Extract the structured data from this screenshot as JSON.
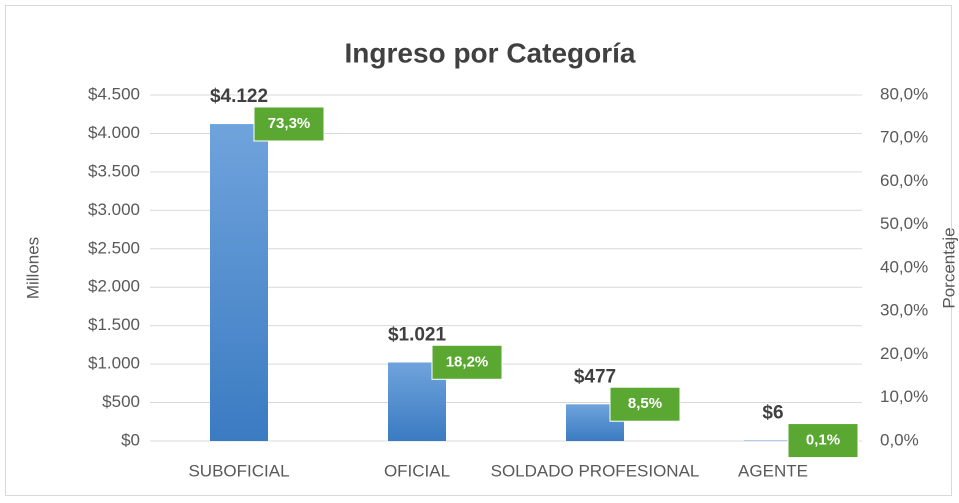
{
  "chart_data": {
    "type": "bar",
    "title": "Ingreso por Categoría",
    "categories": [
      "SUBOFICIAL",
      "OFICIAL",
      "SOLDADO PROFESIONAL",
      "AGENTE"
    ],
    "series": [
      {
        "color": "#4a86c8",
        "values": [
          4122,
          1021,
          477,
          6
        ],
        "value_labels": [
          "$4.122",
          "$1.021",
          "$477",
          "$6"
        ]
      },
      {
        "color": "#5aa832",
        "axis": "y2",
        "values": [
          73.3,
          18.2,
          8.5,
          0.1
        ],
        "value_labels": [
          "73,3%",
          "18,2%",
          "8,5%",
          "0,1%"
        ]
      }
    ],
    "ylabel": "Millones",
    "y2label": "Porcentaje",
    "ylim": [
      0,
      4500
    ],
    "yticks": [
      {
        "value": 0,
        "label": "$0"
      },
      {
        "value": 500,
        "label": "$500"
      },
      {
        "value": 1000,
        "label": "$1.000"
      },
      {
        "value": 1500,
        "label": "$1.500"
      },
      {
        "value": 2000,
        "label": "$2.000"
      },
      {
        "value": 2500,
        "label": "$2.500"
      },
      {
        "value": 3000,
        "label": "$3.000"
      },
      {
        "value": 3500,
        "label": "$3.500"
      },
      {
        "value": 4000,
        "label": "$4.000"
      },
      {
        "value": 4500,
        "label": "$4.500"
      }
    ],
    "y2lim": [
      0,
      80
    ],
    "y2ticks": [
      {
        "value": 0,
        "label": "0,0%"
      },
      {
        "value": 10,
        "label": "10,0%"
      },
      {
        "value": 20,
        "label": "20,0%"
      },
      {
        "value": 30,
        "label": "30,0%"
      },
      {
        "value": 40,
        "label": "40,0%"
      },
      {
        "value": 50,
        "label": "50,0%"
      },
      {
        "value": 60,
        "label": "60,0%"
      },
      {
        "value": 70,
        "label": "70,0%"
      },
      {
        "value": 80,
        "label": "80,0%"
      }
    ],
    "grid": true
  }
}
